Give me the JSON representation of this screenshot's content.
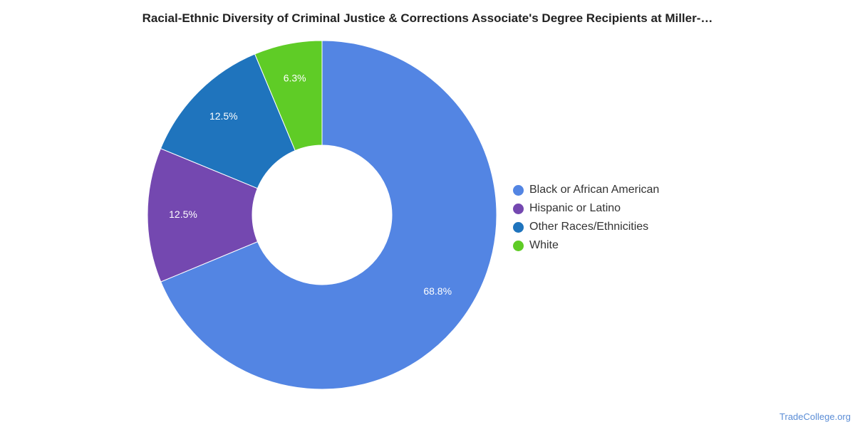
{
  "chart_data": {
    "type": "pie",
    "title": "Racial-Ethnic Diversity of Criminal Justice & Corrections Associate's Degree Recipients at Miller-…",
    "categories": [
      "Black or African American",
      "Hispanic or Latino",
      "Other Races/Ethnicities",
      "White"
    ],
    "values": [
      68.8,
      12.5,
      12.5,
      6.3
    ],
    "value_labels": [
      "68.8%",
      "12.5%",
      "12.5%",
      "6.3%"
    ],
    "colors": [
      "#5385e3",
      "#7448b0",
      "#1f74bd",
      "#5fcc26"
    ],
    "donut": true,
    "legend_position": "right"
  },
  "watermark": "TradeCollege.org"
}
